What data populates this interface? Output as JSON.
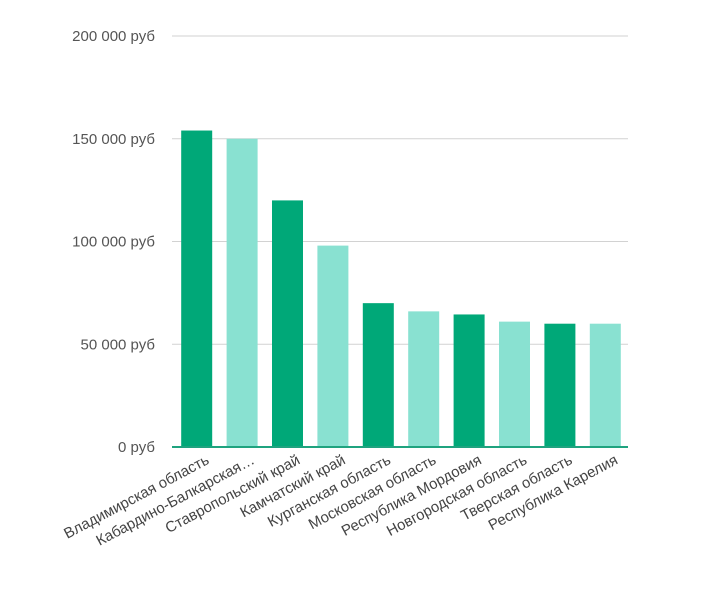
{
  "chart_data": {
    "type": "bar",
    "title": "",
    "xlabel": "",
    "ylabel": "",
    "ylim": [
      0,
      200000
    ],
    "yticks": [
      0,
      50000,
      100000,
      150000,
      200000
    ],
    "ytick_labels": [
      "0 руб",
      "50 000 руб",
      "100 000 руб",
      "150 000 руб",
      "200 000 руб"
    ],
    "grid": true,
    "legend": "none",
    "categories": [
      "Владимирская область",
      "Кабардино-Балкарская…",
      "Ставропольский край",
      "Камчатский край",
      "Курганская область",
      "Московская область",
      "Республика Мордовия",
      "Новгородская область",
      "Тверская область",
      "Республика Карелия"
    ],
    "values": [
      154000,
      150000,
      120000,
      98000,
      70000,
      66000,
      64500,
      61000,
      60000,
      60000
    ],
    "bar_colors": [
      "#00a878",
      "#89e1d1"
    ],
    "grid_color": "#d2d2d2",
    "axis_color": "#1fa37f"
  }
}
